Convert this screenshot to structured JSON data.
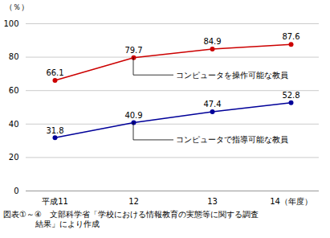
{
  "chart_data": {
    "type": "line",
    "categories": [
      "平成11",
      "12",
      "13",
      "14（年度）"
    ],
    "series": [
      {
        "color": "#cc0000",
        "values": [
          66.1,
          79.7,
          84.9,
          87.6
        ]
      },
      {
        "color": "#000099",
        "values": [
          31.8,
          40.9,
          47.4,
          52.8
        ]
      }
    ],
    "marker": "circle",
    "data_labels": true,
    "ylabel": "（％）",
    "ylim": [
      0,
      100
    ],
    "yticks": [
      0,
      20,
      40,
      60,
      80,
      100
    ],
    "grid": true,
    "annotations": [
      {
        "text": "コンピュータを操作可能な教員",
        "x": "12",
        "y": 79.7
      },
      {
        "text": "コンピュータで指導可能な教員",
        "x": "12",
        "y": 40.9
      }
    ],
    "caption": "図表①～④　文部科学省「学校における情報教育の実態等に関する調査\n　　　　結果」により作成"
  }
}
